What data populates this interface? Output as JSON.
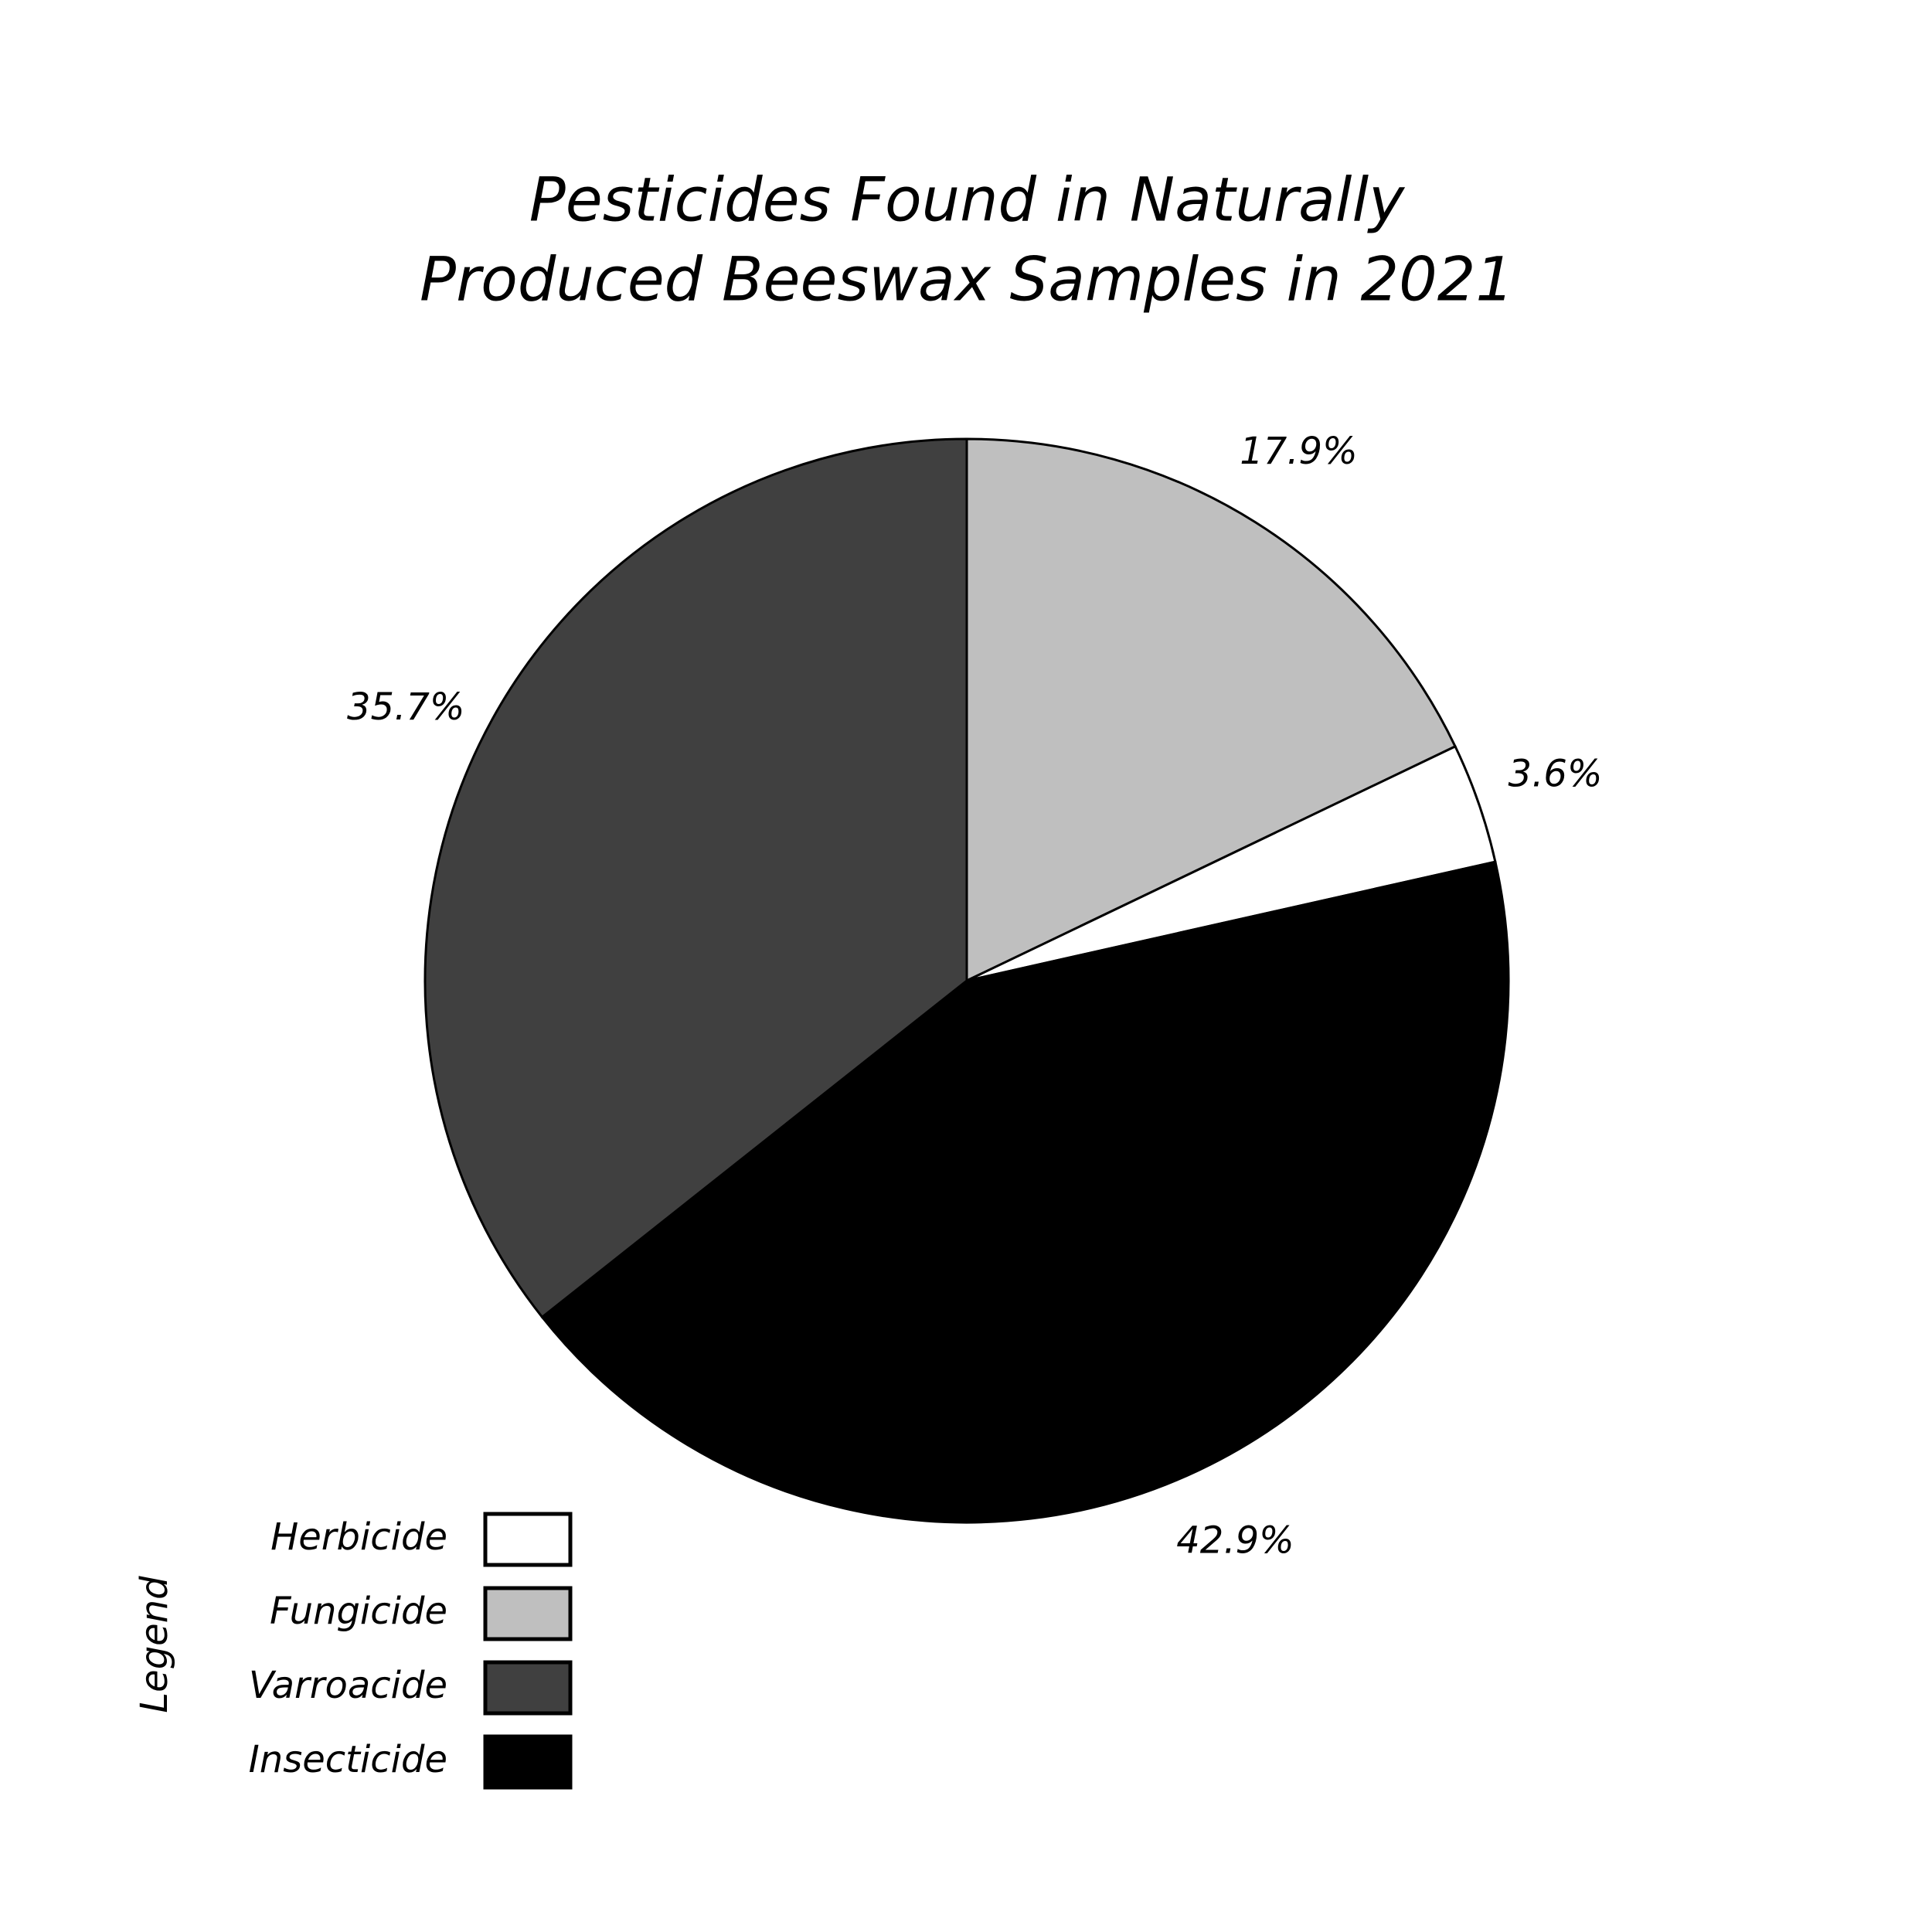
{
  "chart_data": {
    "type": "pie",
    "title": [
      "Pesticides Found in Naturally",
      "Produced Beeswax Samples in 2021"
    ],
    "categories": [
      "Fungicide",
      "Herbicide",
      "Insecticide",
      "Varroacide"
    ],
    "values": [
      17.9,
      3.6,
      42.9,
      35.7
    ],
    "value_labels": [
      "17.9%",
      "3.6%",
      "42.9%",
      "35.7%"
    ],
    "colors": [
      "#bfbfbf",
      "#ffffff",
      "#000000",
      "#404040"
    ],
    "legend_title": "Legend",
    "legend_position": "lower left"
  }
}
